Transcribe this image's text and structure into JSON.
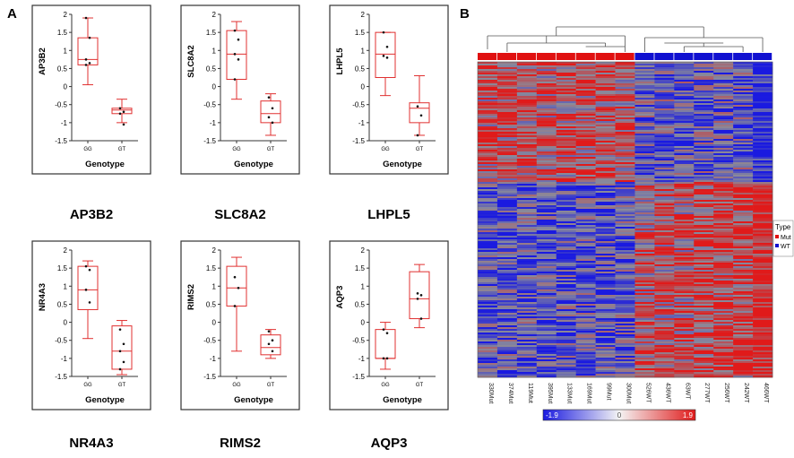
{
  "panel_labels": {
    "a": "A",
    "b": "B"
  },
  "chart_data": [
    {
      "type": "box",
      "ylabel": "AP3B2",
      "xlabel": "Genotype",
      "caption": "AP3B2",
      "categories": [
        "GG",
        "GT"
      ],
      "ylim": [
        -1.5,
        2
      ],
      "yticks": [
        "2",
        "1.5",
        "1",
        "0.5",
        "0",
        "-0.5",
        "-1",
        "-1.5"
      ],
      "boxes": [
        {
          "category": "GG",
          "min": 0.05,
          "q1": 0.6,
          "median": 0.75,
          "q3": 1.35,
          "max": 1.9,
          "points": [
            1.9,
            1.35,
            0.75,
            0.65,
            0.6
          ]
        },
        {
          "category": "GT",
          "min": -1.0,
          "q1": -0.75,
          "median": -0.65,
          "q3": -0.6,
          "max": -0.35,
          "points": [
            -0.6,
            -0.7,
            -0.75,
            -1.05
          ]
        }
      ]
    },
    {
      "type": "box",
      "ylabel": "SLC8A2",
      "xlabel": "Genotype",
      "caption": "SLC8A2",
      "categories": [
        "GG",
        "GT"
      ],
      "ylim": [
        -1.5,
        2
      ],
      "yticks": [
        "2",
        "1.5",
        "1",
        "0.5",
        "0",
        "-0.5",
        "-1",
        "-1.5"
      ],
      "boxes": [
        {
          "category": "GG",
          "min": -0.35,
          "q1": 0.2,
          "median": 0.9,
          "q3": 1.55,
          "max": 1.8,
          "points": [
            1.55,
            1.3,
            0.9,
            0.75,
            0.2
          ]
        },
        {
          "category": "GT",
          "min": -1.35,
          "q1": -1.0,
          "median": -0.75,
          "q3": -0.4,
          "max": -0.2,
          "points": [
            -0.3,
            -0.6,
            -0.85,
            -1.0
          ]
        }
      ]
    },
    {
      "type": "box",
      "ylabel": "LHPL5",
      "xlabel": "Genotype",
      "caption": "LHPL5",
      "categories": [
        "GG",
        "GT"
      ],
      "ylim": [
        -1.5,
        2
      ],
      "yticks": [
        "2",
        "1.5",
        "1",
        "0.5",
        "0",
        "-0.5",
        "-1",
        "-1.5"
      ],
      "boxes": [
        {
          "category": "GG",
          "min": -0.25,
          "q1": 0.25,
          "median": 0.9,
          "q3": 1.5,
          "max": 1.5,
          "points": [
            1.5,
            1.1,
            0.85,
            0.8
          ]
        },
        {
          "category": "GT",
          "min": -1.35,
          "q1": -1.0,
          "median": -0.6,
          "q3": -0.45,
          "max": 0.3,
          "points": [
            -0.55,
            -0.8,
            -1.35
          ]
        }
      ]
    },
    {
      "type": "box",
      "ylabel": "NR4A3",
      "xlabel": "Genotype",
      "caption": "NR4A3",
      "categories": [
        "GG",
        "GT"
      ],
      "ylim": [
        -1.5,
        2
      ],
      "yticks": [
        "2",
        "1.5",
        "1",
        "0.5",
        "0",
        "-0.5",
        "-1",
        "-1.5"
      ],
      "boxes": [
        {
          "category": "GG",
          "min": -0.45,
          "q1": 0.35,
          "median": 0.9,
          "q3": 1.55,
          "max": 1.7,
          "points": [
            1.55,
            1.45,
            0.9,
            0.55
          ]
        },
        {
          "category": "GT",
          "min": -1.45,
          "q1": -1.3,
          "median": -0.8,
          "q3": -0.1,
          "max": 0.05,
          "points": [
            -0.2,
            -0.6,
            -0.8,
            -1.1,
            -1.3
          ]
        }
      ]
    },
    {
      "type": "box",
      "ylabel": "RIMS2",
      "xlabel": "Genotype",
      "caption": "RIMS2",
      "categories": [
        "GG",
        "GT"
      ],
      "ylim": [
        -1.5,
        2
      ],
      "yticks": [
        "2",
        "1.5",
        "1",
        "0.5",
        "0",
        "-0.5",
        "-1",
        "-1.5"
      ],
      "boxes": [
        {
          "category": "GG",
          "min": -0.8,
          "q1": 0.45,
          "median": 0.95,
          "q3": 1.55,
          "max": 1.8,
          "points": [
            1.25,
            0.95,
            0.45
          ]
        },
        {
          "category": "GT",
          "min": -1.0,
          "q1": -0.9,
          "median": -0.7,
          "q3": -0.35,
          "max": -0.2,
          "points": [
            -0.25,
            -0.5,
            -0.6,
            -0.8
          ]
        }
      ]
    },
    {
      "type": "box",
      "ylabel": "AQP3",
      "xlabel": "Genotype",
      "caption": "AQP3",
      "categories": [
        "GG",
        "GT"
      ],
      "ylim": [
        -1.5,
        2
      ],
      "yticks": [
        "2",
        "1.5",
        "1",
        "0.5",
        "0",
        "-0.5",
        "-1",
        "-1.5"
      ],
      "boxes": [
        {
          "category": "GG",
          "min": -1.3,
          "q1": -1.0,
          "median": -1.0,
          "q3": -0.2,
          "max": 0.0,
          "points": [
            -0.2,
            -0.3,
            -1.0,
            -1.0
          ]
        },
        {
          "category": "GT",
          "min": -0.15,
          "q1": 0.1,
          "median": 0.65,
          "q3": 1.4,
          "max": 1.6,
          "points": [
            0.8,
            0.75,
            0.65,
            0.1
          ]
        }
      ]
    },
    {
      "type": "heatmap",
      "samples": [
        "330Mut",
        "374Mut",
        "119Mut",
        "395Mut",
        "133Mut",
        "169Mut",
        "99Mut",
        "300Mut",
        "526WT",
        "436WT",
        "63WT",
        "277WT",
        "256WT",
        "242WT",
        "466WT"
      ],
      "sample_type": [
        "Mut",
        "Mut",
        "Mut",
        "Mut",
        "Mut",
        "Mut",
        "Mut",
        "Mut",
        "WT",
        "WT",
        "WT",
        "WT",
        "WT",
        "WT",
        "WT"
      ],
      "legend": {
        "title": "Type",
        "items": [
          {
            "label": "Mut",
            "color": "#e01010"
          },
          {
            "label": "WT",
            "color": "#1010d0"
          }
        ]
      },
      "color_scale": {
        "min_label": "-1.9",
        "mid_label": "0",
        "max_label": "1.9",
        "low_color": "#1a1ae0",
        "mid_color": "#8a8a9a",
        "high_color": "#e01a1a"
      }
    }
  ]
}
